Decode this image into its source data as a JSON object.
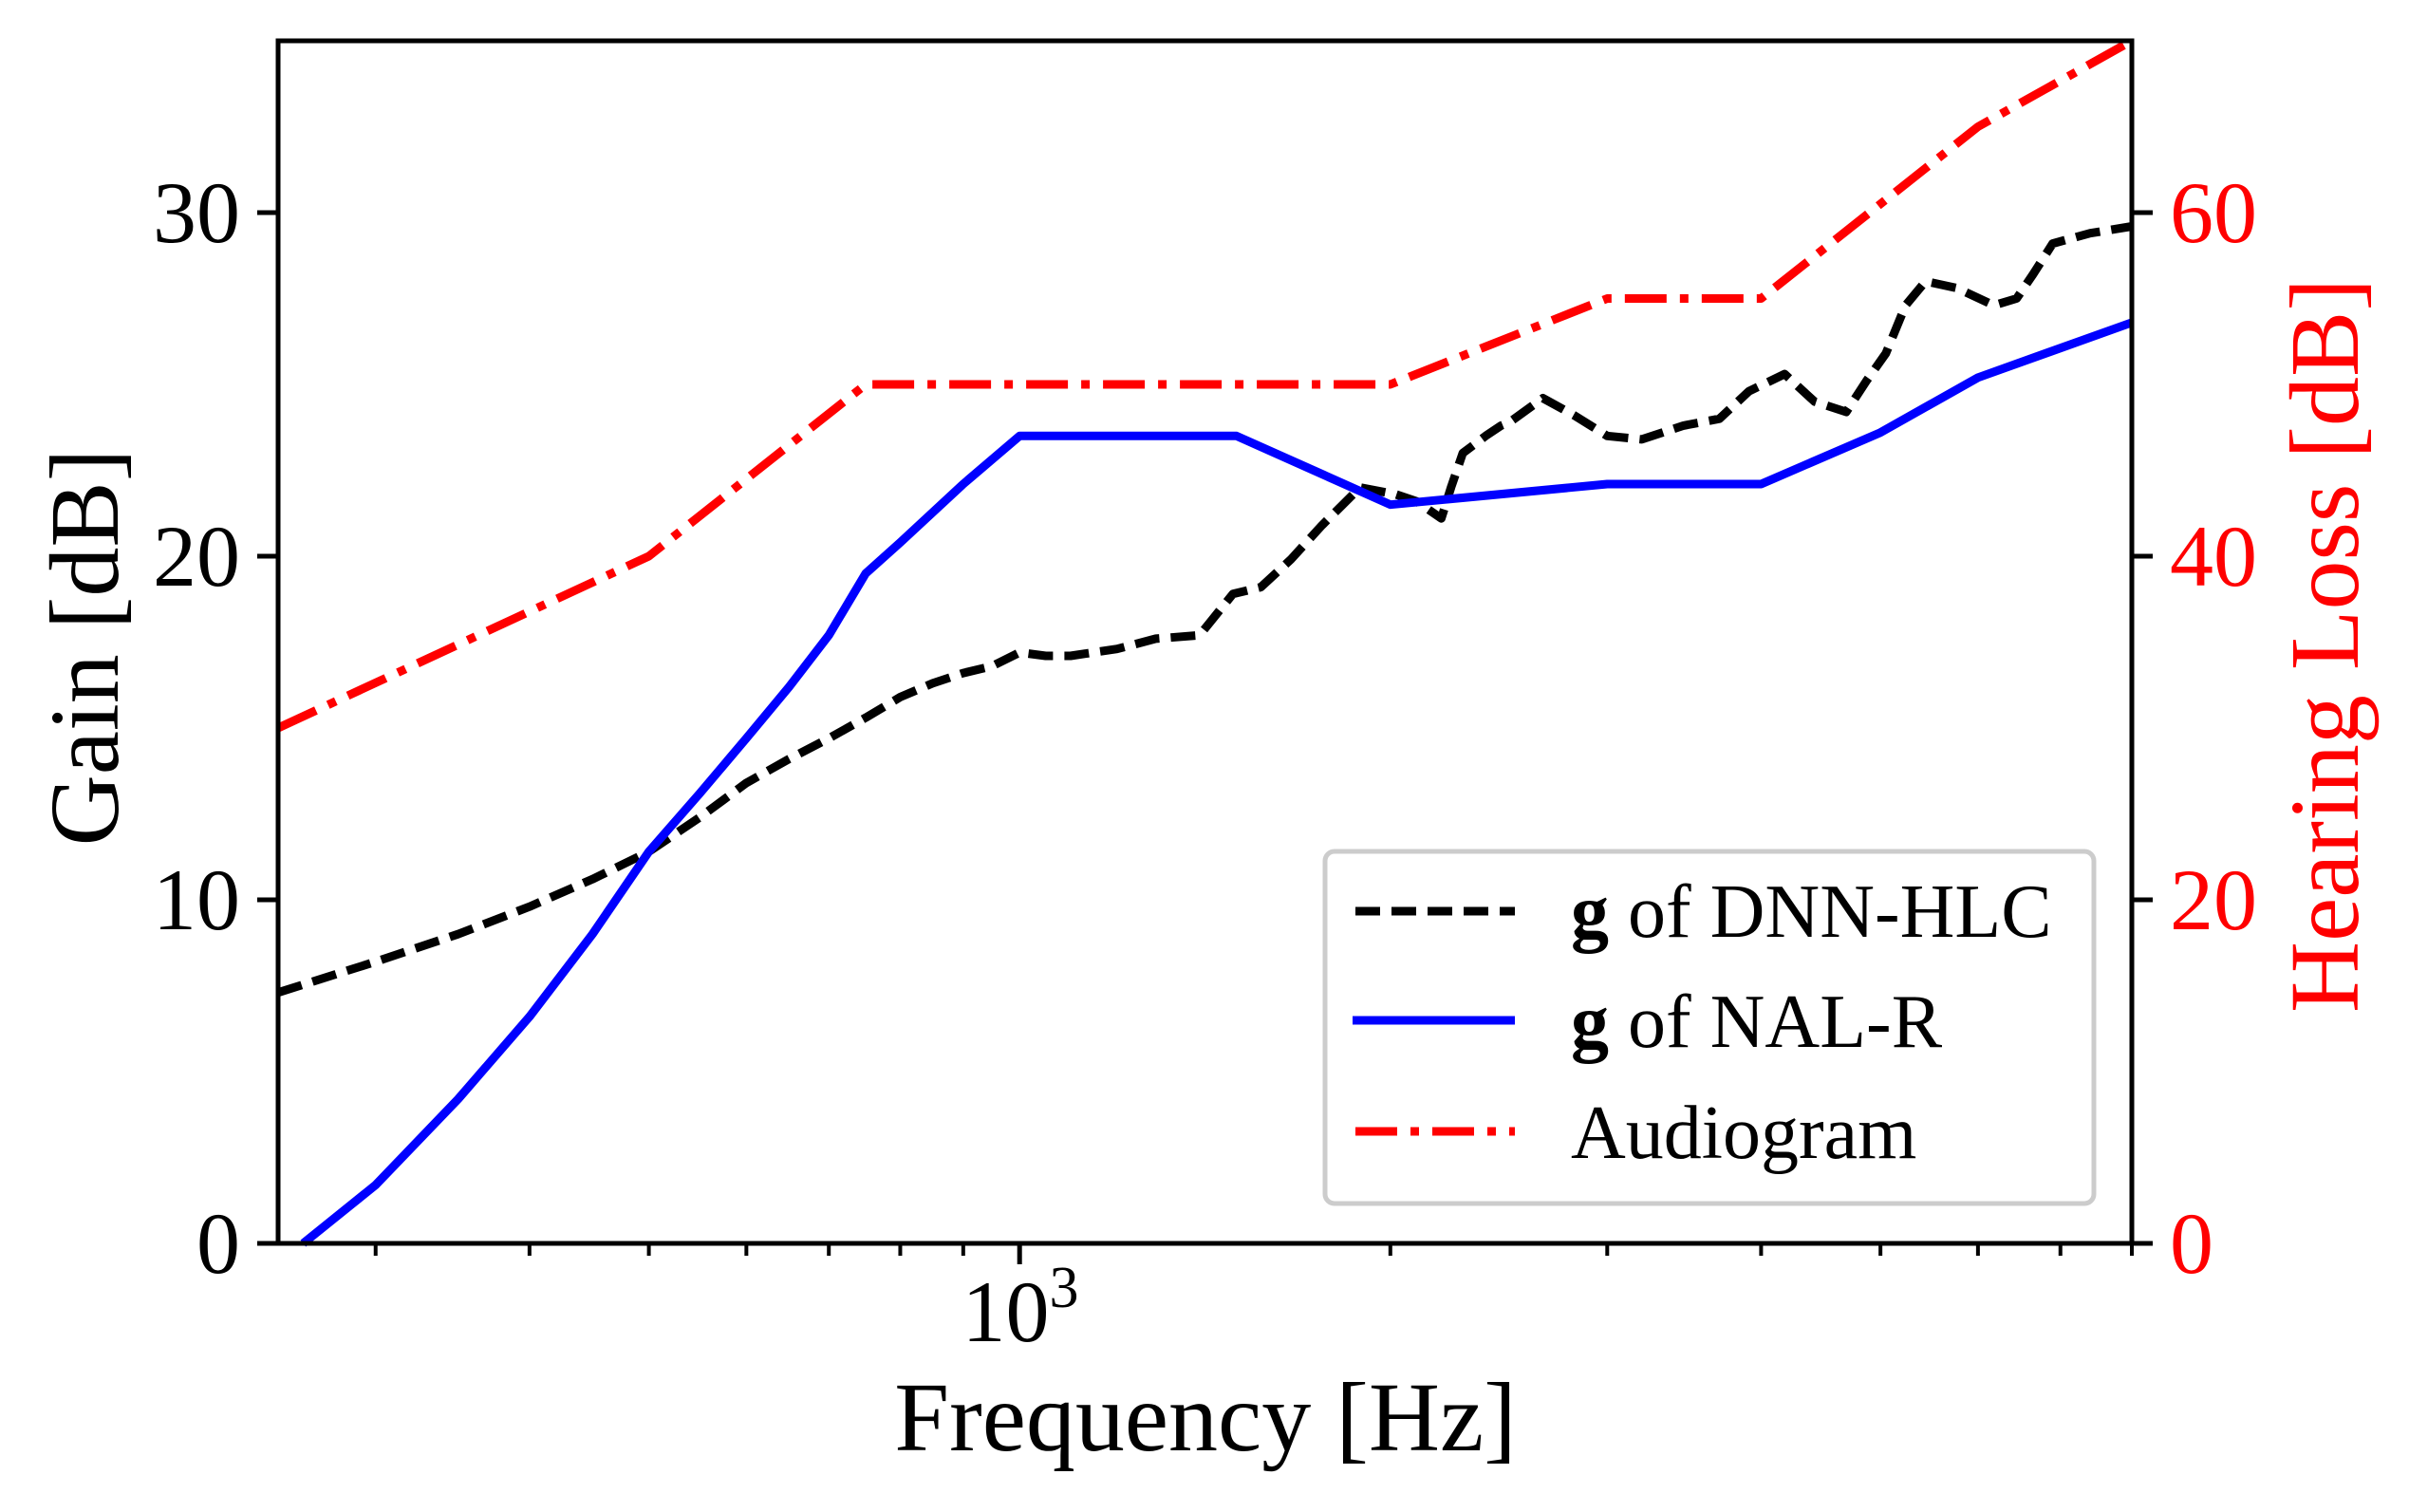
{
  "chart_data": {
    "type": "line",
    "title": "",
    "xlabel": "Frequency [Hz]",
    "ylabel": "Gain [dB]",
    "ylabel_right": "Hearing Loss [dB]",
    "xscale": "log",
    "xlim": [
      250,
      8000
    ],
    "ylim": [
      0,
      35
    ],
    "ylim_right": [
      0,
      70
    ],
    "grid": false,
    "legend_position": "lower right",
    "x_major_ticks": [
      {
        "value": 1000,
        "label_base": "10",
        "label_exp": "3"
      }
    ],
    "x_minor_ticks": [
      300,
      400,
      500,
      600,
      700,
      800,
      900,
      2000,
      3000,
      4000,
      5000,
      6000,
      7000,
      8000
    ],
    "y_ticks": [
      0,
      10,
      20,
      30
    ],
    "y_ticks_right": [
      0,
      20,
      40,
      60
    ],
    "colors": {
      "axis": "#000000",
      "right_axis_text": "#ff0000",
      "legend_border": "#cccccc"
    },
    "series": [
      {
        "name": "g of DNN-HLC",
        "legend_bold": "g",
        "legend_rest": " of DNN-HLC",
        "axis": "left",
        "color": "#000000",
        "style": "dashed",
        "x": [
          250,
          300,
          350,
          400,
          450,
          500,
          550,
          600,
          650,
          700,
          750,
          800,
          850,
          900,
          950,
          1000,
          1050,
          1100,
          1200,
          1290,
          1400,
          1490,
          1570,
          1660,
          1760,
          1890,
          2020,
          2100,
          2200,
          2240,
          2290,
          2390,
          2460,
          2500,
          2660,
          2820,
          3000,
          3200,
          3460,
          3700,
          3910,
          4180,
          4420,
          4690,
          4870,
          5050,
          5240,
          5440,
          5770,
          6180,
          6450,
          6650,
          6900,
          7400,
          8000
        ],
        "values": [
          7.3,
          8.2,
          9.0,
          9.8,
          10.6,
          11.4,
          12.4,
          13.4,
          14.1,
          14.7,
          15.3,
          15.9,
          16.3,
          16.6,
          16.8,
          17.2,
          17.1,
          17.1,
          17.3,
          17.6,
          17.7,
          18.9,
          19.1,
          19.9,
          20.9,
          22.0,
          21.8,
          21.6,
          21.1,
          22.0,
          23.0,
          23.5,
          23.8,
          23.9,
          24.6,
          24.1,
          23.5,
          23.4,
          23.8,
          24.0,
          24.8,
          25.3,
          24.5,
          24.2,
          25.1,
          25.9,
          27.3,
          28.0,
          27.8,
          27.3,
          27.5,
          28.2,
          29.1,
          29.4,
          29.6
        ]
      },
      {
        "name": "g of NAL-R",
        "legend_bold": "g",
        "legend_rest": " of NAL-R",
        "axis": "left",
        "color": "#0000ff",
        "style": "solid",
        "x": [
          262,
          300,
          350,
          400,
          450,
          500,
          550,
          600,
          650,
          700,
          750,
          800,
          900,
          1000,
          1500,
          2000,
          3000,
          4000,
          5000,
          6000,
          8000
        ],
        "values": [
          0.0,
          1.7,
          4.2,
          6.6,
          9.0,
          11.4,
          13.1,
          14.7,
          16.2,
          17.7,
          19.5,
          20.4,
          22.1,
          23.5,
          23.5,
          21.5,
          22.1,
          22.1,
          23.6,
          25.2,
          26.8
        ]
      },
      {
        "name": "Audiogram",
        "legend_bold": "",
        "legend_rest": "Audiogram",
        "axis": "right",
        "color": "#ff0000",
        "style": "dashdot",
        "x": [
          250,
          500,
          750,
          1000,
          1500,
          2000,
          3000,
          4000,
          6000,
          8000
        ],
        "values": [
          30,
          40,
          50,
          50,
          50,
          50,
          55,
          55,
          65,
          70
        ]
      }
    ]
  }
}
